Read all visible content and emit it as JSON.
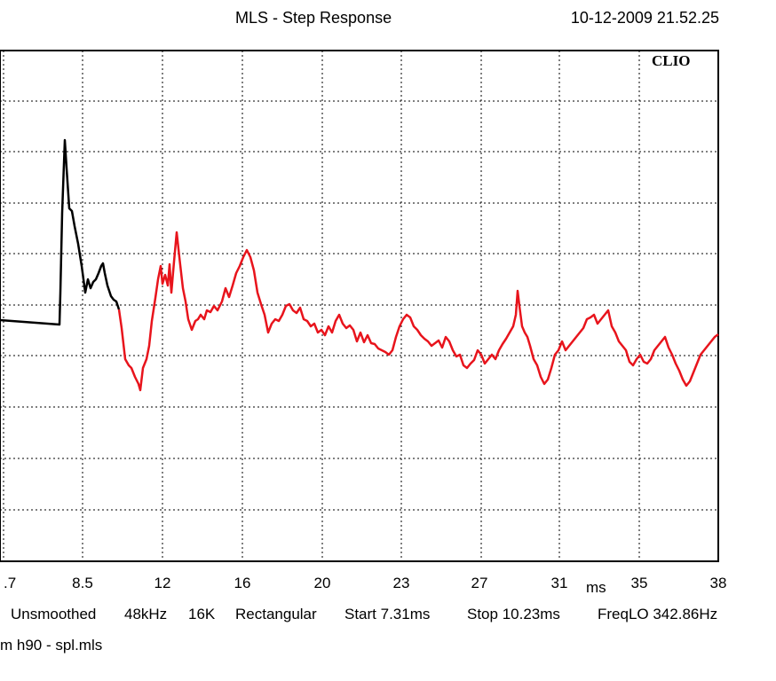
{
  "chart_data": {
    "type": "line",
    "title": "MLS - Step Response",
    "timestamp": "10-12-2009 21.52.25",
    "brand": "CLIO",
    "xunit": "ms",
    "x_ticks": [
      ".7",
      "8.5",
      "12",
      "16",
      "20",
      "23",
      "27",
      "31",
      "35",
      "38"
    ],
    "series_colors": [
      "#000000",
      "#e8141c"
    ],
    "info": {
      "smoothing": "Unsmoothed",
      "rate": "48kHz",
      "size": "16K",
      "window": "Rectangular",
      "start": "Start 7.31ms",
      "stop": "Stop 10.23ms",
      "freqlo": "FreqLO 342.86Hz"
    },
    "file": "m h90 - spl.mls",
    "series": [
      {
        "points": [
          [
            0,
            361
          ],
          [
            67,
            366
          ],
          [
            68,
            330
          ],
          [
            70,
            240
          ],
          [
            72,
            185
          ],
          [
            73,
            158
          ],
          [
            75,
            190
          ],
          [
            78,
            235
          ],
          [
            81,
            238
          ],
          [
            84,
            255
          ],
          [
            88,
            275
          ],
          [
            92,
            300
          ],
          [
            96,
            330
          ],
          [
            99,
            315
          ],
          [
            102,
            325
          ],
          [
            105,
            318
          ],
          [
            108,
            315
          ],
          [
            111,
            308
          ],
          [
            114,
            300
          ],
          [
            116,
            297
          ],
          [
            118,
            308
          ],
          [
            121,
            322
          ],
          [
            125,
            334
          ],
          [
            128,
            338
          ],
          [
            131,
            340
          ],
          [
            134,
            349
          ]
        ]
      },
      {
        "points": [
          [
            134,
            349
          ],
          [
            137,
            370
          ],
          [
            141,
            405
          ],
          [
            145,
            412
          ],
          [
            148,
            415
          ],
          [
            152,
            425
          ],
          [
            156,
            433
          ],
          [
            158,
            440
          ],
          [
            161,
            415
          ],
          [
            165,
            405
          ],
          [
            168,
            390
          ],
          [
            171,
            362
          ],
          [
            175,
            336
          ],
          [
            178,
            315
          ],
          [
            181,
            300
          ],
          [
            183,
            320
          ],
          [
            186,
            310
          ],
          [
            189,
            322
          ],
          [
            191,
            298
          ],
          [
            193,
            330
          ],
          [
            196,
            295
          ],
          [
            199,
            262
          ],
          [
            202,
            290
          ],
          [
            206,
            325
          ],
          [
            209,
            340
          ],
          [
            212,
            360
          ],
          [
            216,
            372
          ],
          [
            220,
            362
          ],
          [
            223,
            360
          ],
          [
            226,
            355
          ],
          [
            230,
            360
          ],
          [
            233,
            350
          ],
          [
            237,
            352
          ],
          [
            241,
            345
          ],
          [
            245,
            350
          ],
          [
            250,
            340
          ],
          [
            254,
            325
          ],
          [
            258,
            335
          ],
          [
            262,
            322
          ],
          [
            266,
            308
          ],
          [
            270,
            300
          ],
          [
            274,
            290
          ],
          [
            278,
            282
          ],
          [
            282,
            290
          ],
          [
            286,
            305
          ],
          [
            290,
            330
          ],
          [
            294,
            343
          ],
          [
            298,
            355
          ],
          [
            302,
            375
          ],
          [
            306,
            365
          ],
          [
            310,
            360
          ],
          [
            314,
            362
          ],
          [
            318,
            355
          ],
          [
            322,
            345
          ],
          [
            326,
            343
          ],
          [
            330,
            350
          ],
          [
            334,
            353
          ],
          [
            338,
            347
          ],
          [
            342,
            360
          ],
          [
            346,
            362
          ],
          [
            350,
            368
          ],
          [
            354,
            365
          ],
          [
            358,
            375
          ],
          [
            362,
            372
          ],
          [
            366,
            378
          ],
          [
            370,
            368
          ],
          [
            374,
            375
          ],
          [
            378,
            362
          ],
          [
            382,
            355
          ],
          [
            386,
            365
          ],
          [
            390,
            370
          ],
          [
            394,
            367
          ],
          [
            398,
            372
          ],
          [
            402,
            385
          ],
          [
            406,
            375
          ],
          [
            410,
            386
          ],
          [
            414,
            378
          ],
          [
            418,
            387
          ],
          [
            422,
            388
          ],
          [
            426,
            393
          ],
          [
            430,
            395
          ],
          [
            434,
            397
          ],
          [
            438,
            400
          ],
          [
            442,
            395
          ],
          [
            446,
            380
          ],
          [
            450,
            368
          ],
          [
            454,
            360
          ],
          [
            458,
            355
          ],
          [
            462,
            358
          ],
          [
            466,
            368
          ],
          [
            470,
            372
          ],
          [
            474,
            378
          ],
          [
            478,
            382
          ],
          [
            482,
            385
          ],
          [
            486,
            390
          ],
          [
            490,
            387
          ],
          [
            494,
            384
          ],
          [
            498,
            392
          ],
          [
            502,
            380
          ],
          [
            506,
            385
          ],
          [
            510,
            395
          ],
          [
            514,
            402
          ],
          [
            518,
            400
          ],
          [
            522,
            412
          ],
          [
            526,
            415
          ],
          [
            530,
            410
          ],
          [
            534,
            406
          ],
          [
            538,
            395
          ],
          [
            542,
            400
          ],
          [
            546,
            410
          ],
          [
            550,
            405
          ],
          [
            554,
            400
          ],
          [
            558,
            405
          ],
          [
            562,
            395
          ],
          [
            566,
            388
          ],
          [
            570,
            382
          ],
          [
            574,
            375
          ],
          [
            578,
            368
          ],
          [
            581,
            355
          ],
          [
            583,
            328
          ],
          [
            585,
            345
          ],
          [
            588,
            368
          ],
          [
            591,
            375
          ],
          [
            594,
            380
          ],
          [
            597,
            390
          ],
          [
            601,
            405
          ],
          [
            605,
            412
          ],
          [
            609,
            425
          ],
          [
            613,
            433
          ],
          [
            617,
            428
          ],
          [
            621,
            415
          ],
          [
            625,
            400
          ],
          [
            629,
            395
          ],
          [
            633,
            385
          ],
          [
            637,
            395
          ],
          [
            641,
            390
          ],
          [
            645,
            385
          ],
          [
            649,
            380
          ],
          [
            653,
            375
          ],
          [
            657,
            370
          ],
          [
            661,
            360
          ],
          [
            665,
            358
          ],
          [
            669,
            355
          ],
          [
            673,
            365
          ],
          [
            677,
            360
          ],
          [
            681,
            355
          ],
          [
            685,
            350
          ],
          [
            689,
            368
          ],
          [
            693,
            375
          ],
          [
            697,
            385
          ],
          [
            701,
            390
          ],
          [
            705,
            395
          ],
          [
            709,
            408
          ],
          [
            713,
            412
          ],
          [
            717,
            405
          ],
          [
            721,
            400
          ],
          [
            725,
            408
          ],
          [
            729,
            410
          ],
          [
            733,
            405
          ],
          [
            737,
            395
          ],
          [
            741,
            390
          ],
          [
            745,
            385
          ],
          [
            749,
            380
          ],
          [
            753,
            392
          ],
          [
            757,
            400
          ],
          [
            761,
            410
          ],
          [
            765,
            418
          ],
          [
            769,
            428
          ],
          [
            773,
            435
          ],
          [
            777,
            430
          ],
          [
            781,
            420
          ],
          [
            785,
            410
          ],
          [
            789,
            400
          ],
          [
            793,
            395
          ],
          [
            797,
            390
          ],
          [
            801,
            385
          ],
          [
            805,
            380
          ],
          [
            809,
            377
          ]
        ]
      }
    ]
  }
}
